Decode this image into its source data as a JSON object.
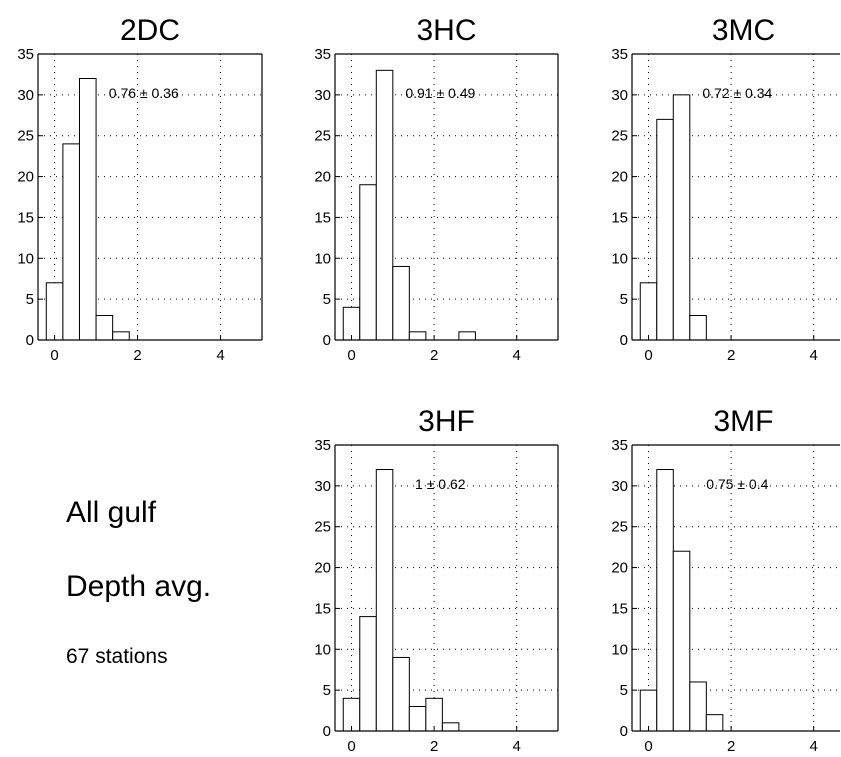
{
  "figure_note": {
    "line1": "All gulf",
    "line2": "Depth avg.",
    "line3": "67 stations"
  },
  "chart_data": [
    {
      "type": "bar",
      "title": "2DC",
      "annotation": "0.76 ± 0.36",
      "bin_width": 0.4,
      "x": [
        0,
        0.4,
        0.8,
        1.2,
        1.6,
        2.0
      ],
      "values": [
        7,
        24,
        32,
        3,
        1,
        0
      ],
      "xlim": [
        -0.4,
        5.0
      ],
      "ylim": [
        0,
        35
      ],
      "xticks": [
        0,
        2,
        4
      ],
      "yticks": [
        0,
        5,
        10,
        15,
        20,
        25,
        30,
        35
      ],
      "grid": true
    },
    {
      "type": "bar",
      "title": "3HC",
      "annotation": "0.91 ± 0.49",
      "bin_width": 0.4,
      "x": [
        0,
        0.4,
        0.8,
        1.2,
        1.6,
        2.0,
        2.4,
        2.8
      ],
      "values": [
        4,
        19,
        33,
        9,
        1,
        0,
        0,
        1
      ],
      "xlim": [
        -0.4,
        5.0
      ],
      "ylim": [
        0,
        35
      ],
      "xticks": [
        0,
        2,
        4
      ],
      "yticks": [
        0,
        5,
        10,
        15,
        20,
        25,
        30,
        35
      ],
      "grid": true
    },
    {
      "type": "bar",
      "title": "3MC",
      "annotation": "0.72 ± 0.34",
      "bin_width": 0.4,
      "x": [
        0,
        0.4,
        0.8,
        1.2
      ],
      "values": [
        7,
        27,
        30,
        3
      ],
      "xlim": [
        -0.4,
        5.0
      ],
      "ylim": [
        0,
        35
      ],
      "xticks": [
        0,
        2,
        4
      ],
      "yticks": [
        0,
        5,
        10,
        15,
        20,
        25,
        30,
        35
      ],
      "grid": true
    },
    {
      "type": "bar",
      "title": "3HF",
      "annotation": "1 ± 0.62",
      "bin_width": 0.4,
      "x": [
        0,
        0.4,
        0.8,
        1.2,
        1.6,
        2.0,
        2.4,
        2.8
      ],
      "values": [
        4,
        14,
        32,
        9,
        3,
        4,
        1,
        0
      ],
      "xlim": [
        -0.4,
        5.0
      ],
      "ylim": [
        0,
        35
      ],
      "xticks": [
        0,
        2,
        4
      ],
      "yticks": [
        0,
        5,
        10,
        15,
        20,
        25,
        30,
        35
      ],
      "grid": true
    },
    {
      "type": "bar",
      "title": "3MF",
      "annotation": "0.75 ± 0.4",
      "bin_width": 0.4,
      "x": [
        0,
        0.4,
        0.8,
        1.2,
        1.6
      ],
      "values": [
        5,
        32,
        22,
        6,
        2
      ],
      "xlim": [
        -0.4,
        5.0
      ],
      "ylim": [
        0,
        35
      ],
      "xticks": [
        0,
        2,
        4
      ],
      "yticks": [
        0,
        5,
        10,
        15,
        20,
        25,
        30,
        35
      ],
      "grid": true
    }
  ]
}
